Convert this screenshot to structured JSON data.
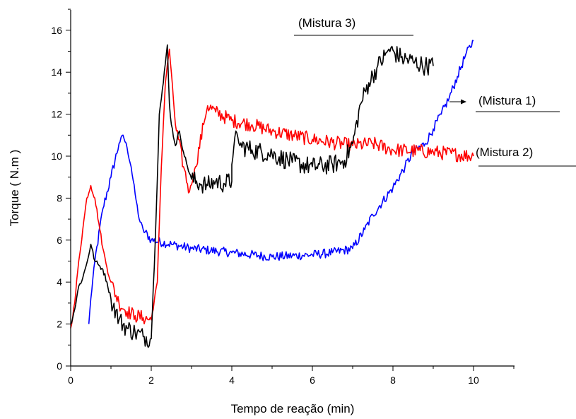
{
  "chart_data": {
    "type": "line",
    "title": "",
    "xlabel": "Tempo de reação (min)",
    "ylabel": "Torque ( N.m )",
    "xlim": [
      0,
      11
    ],
    "ylim": [
      0,
      17
    ],
    "x_ticks": [
      0,
      2,
      4,
      6,
      8,
      10
    ],
    "y_ticks": [
      0,
      2,
      4,
      6,
      8,
      10,
      12,
      14,
      16
    ],
    "grid": false,
    "annotations": [
      {
        "text": "(Mistura 1)",
        "series": "Mistura 1"
      },
      {
        "text": "(Mistura 2)",
        "series": "Mistura 2"
      },
      {
        "text": "(Mistura 3)",
        "series": "Mistura 3"
      }
    ],
    "series": [
      {
        "name": "Mistura 1",
        "color": "#0000ff",
        "x": [
          0.45,
          0.5,
          0.6,
          0.8,
          1.0,
          1.2,
          1.3,
          1.4,
          1.5,
          1.6,
          1.7,
          1.8,
          2.0,
          2.5,
          3.0,
          4.0,
          5.0,
          6.0,
          6.5,
          7.0,
          7.3,
          7.5,
          8.0,
          8.3,
          8.5,
          8.8,
          9.0,
          9.2,
          9.4,
          9.6,
          9.8,
          10.0
        ],
        "y": [
          2.0,
          3.2,
          5.0,
          7.5,
          9.0,
          10.6,
          11.0,
          10.4,
          9.5,
          8.2,
          7.0,
          6.5,
          6.0,
          5.8,
          5.6,
          5.4,
          5.2,
          5.3,
          5.4,
          5.6,
          6.5,
          7.2,
          8.5,
          9.5,
          10.2,
          10.6,
          11.3,
          12.0,
          12.8,
          13.8,
          14.8,
          15.5
        ]
      },
      {
        "name": "Mistura 2",
        "color": "#ff0000",
        "x": [
          0.0,
          0.1,
          0.2,
          0.3,
          0.4,
          0.5,
          0.6,
          0.7,
          0.8,
          0.9,
          1.0,
          1.2,
          1.4,
          1.6,
          1.8,
          2.0,
          2.15,
          2.25,
          2.35,
          2.45,
          2.6,
          2.8,
          2.95,
          3.1,
          3.3,
          3.4,
          3.6,
          4.0,
          4.5,
          5.0,
          6.0,
          7.0,
          7.5,
          8.0,
          9.0,
          10.0
        ],
        "y": [
          1.8,
          3.0,
          5.0,
          6.5,
          8.0,
          8.6,
          8.0,
          6.8,
          5.6,
          4.7,
          4.0,
          3.0,
          2.6,
          2.4,
          2.3,
          2.2,
          4.0,
          9.5,
          13.5,
          15.1,
          11.5,
          9.5,
          8.3,
          9.5,
          11.5,
          12.4,
          12.1,
          11.7,
          11.5,
          11.2,
          10.8,
          10.5,
          10.6,
          10.3,
          10.2,
          10.0
        ]
      },
      {
        "name": "Mistura 3",
        "color": "#000000",
        "x": [
          0.0,
          0.1,
          0.2,
          0.3,
          0.4,
          0.5,
          0.6,
          0.7,
          0.8,
          0.9,
          1.0,
          1.2,
          1.4,
          1.6,
          1.8,
          2.0,
          2.1,
          2.2,
          2.3,
          2.4,
          2.45,
          2.5,
          2.6,
          2.7,
          2.8,
          2.9,
          3.0,
          3.2,
          3.4,
          3.6,
          3.8,
          4.0,
          4.0,
          4.1,
          4.2,
          4.5,
          5.0,
          5.5,
          6.0,
          6.5,
          6.8,
          7.0,
          7.2,
          7.4,
          7.6,
          7.8,
          7.9,
          8.2,
          8.5,
          8.8,
          9.0
        ],
        "y": [
          2.0,
          2.7,
          3.8,
          4.2,
          4.9,
          5.8,
          5.0,
          4.8,
          4.6,
          4.0,
          3.2,
          2.2,
          1.8,
          1.6,
          1.4,
          1.3,
          6.0,
          12.0,
          13.5,
          15.3,
          12.5,
          11.5,
          10.5,
          11.2,
          10.2,
          9.5,
          8.9,
          8.7,
          8.6,
          8.8,
          8.7,
          8.8,
          9.6,
          11.2,
          10.5,
          10.3,
          10.1,
          9.7,
          9.5,
          9.6,
          9.8,
          10.6,
          12.5,
          13.5,
          14.2,
          14.8,
          15.1,
          14.7,
          14.5,
          14.3,
          14.3
        ]
      }
    ]
  }
}
